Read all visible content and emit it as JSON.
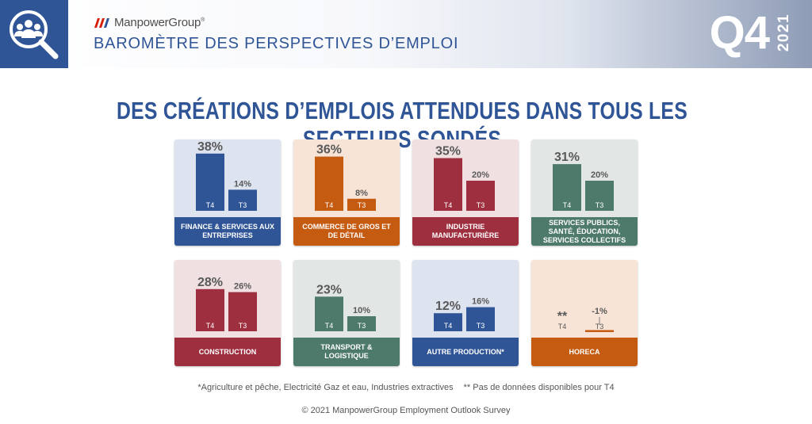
{
  "header": {
    "logo_text": "ManpowerGroup",
    "logo_mark": "®",
    "title": "BAROMÈTRE DES PERSPECTIVES D’EMPLOI",
    "quarter": "Q4",
    "year": "2021",
    "icon": "people-search-icon",
    "colors": {
      "accent": "#2f5597"
    }
  },
  "headline": "DES CRÉATIONS D’EMPLOIS ATTENDUES DANS TOUS LES SECTEURS SONDÉS",
  "footnote": {
    "note1": "*Agriculture et pêche, Electricité Gaz et eau, Industries extractives",
    "note2": "** Pas de données disponibles pour T4"
  },
  "copyright": "© 2021 ManpowerGroup Employment Outlook Survey",
  "chart_data": [
    {
      "type": "bar",
      "title": "FINANCE & SERVICES AUX ENTREPRISES",
      "categories": [
        "T4",
        "T3"
      ],
      "values": [
        38,
        14
      ],
      "value_labels": [
        "38%",
        "14%"
      ],
      "ylim": [
        -5,
        40
      ],
      "color": "#2f5597",
      "bg": "#dde3ef"
    },
    {
      "type": "bar",
      "title": "COMMERCE DE GROS ET DE DÉTAIL",
      "categories": [
        "T4",
        "T3"
      ],
      "values": [
        36,
        8
      ],
      "value_labels": [
        "36%",
        "8%"
      ],
      "ylim": [
        -5,
        40
      ],
      "color": "#c55a11",
      "bg": "#f8e4d6"
    },
    {
      "type": "bar",
      "title": "INDUSTRIE MANUFACTURIÈRE",
      "categories": [
        "T4",
        "T3"
      ],
      "values": [
        35,
        20
      ],
      "value_labels": [
        "35%",
        "20%"
      ],
      "ylim": [
        -5,
        40
      ],
      "color": "#9e2f3f",
      "bg": "#f0e0e2"
    },
    {
      "type": "bar",
      "title": "SERVICES PUBLICS, SANTÉ, ÉDUCATION, SERVICES COLLECTIFS",
      "categories": [
        "T4",
        "T3"
      ],
      "values": [
        31,
        20
      ],
      "value_labels": [
        "31%",
        "20%"
      ],
      "ylim": [
        -5,
        40
      ],
      "color": "#4e7a6b",
      "bg": "#e2e6e5"
    },
    {
      "type": "bar",
      "title": "CONSTRUCTION",
      "categories": [
        "T4",
        "T3"
      ],
      "values": [
        28,
        26
      ],
      "value_labels": [
        "28%",
        "26%"
      ],
      "ylim": [
        -5,
        40
      ],
      "color": "#9e2f3f",
      "bg": "#f0e0e2"
    },
    {
      "type": "bar",
      "title": "TRANSPORT & LOGISTIQUE",
      "categories": [
        "T4",
        "T3"
      ],
      "values": [
        23,
        10
      ],
      "value_labels": [
        "23%",
        "10%"
      ],
      "ylim": [
        -5,
        40
      ],
      "color": "#4e7a6b",
      "bg": "#e2e6e5"
    },
    {
      "type": "bar",
      "title": "AUTRE PRODUCTION*",
      "categories": [
        "T4",
        "T3"
      ],
      "values": [
        12,
        16
      ],
      "value_labels": [
        "12%",
        "16%"
      ],
      "ylim": [
        -5,
        40
      ],
      "color": "#2f5597",
      "bg": "#dde3ef"
    },
    {
      "type": "bar",
      "title": "HORECA",
      "categories": [
        "T4",
        "T3"
      ],
      "values": [
        null,
        -1
      ],
      "value_labels": [
        "**",
        "-1%"
      ],
      "ylim": [
        -5,
        40
      ],
      "color": "#c55a11",
      "bg": "#f8e4d6"
    }
  ]
}
